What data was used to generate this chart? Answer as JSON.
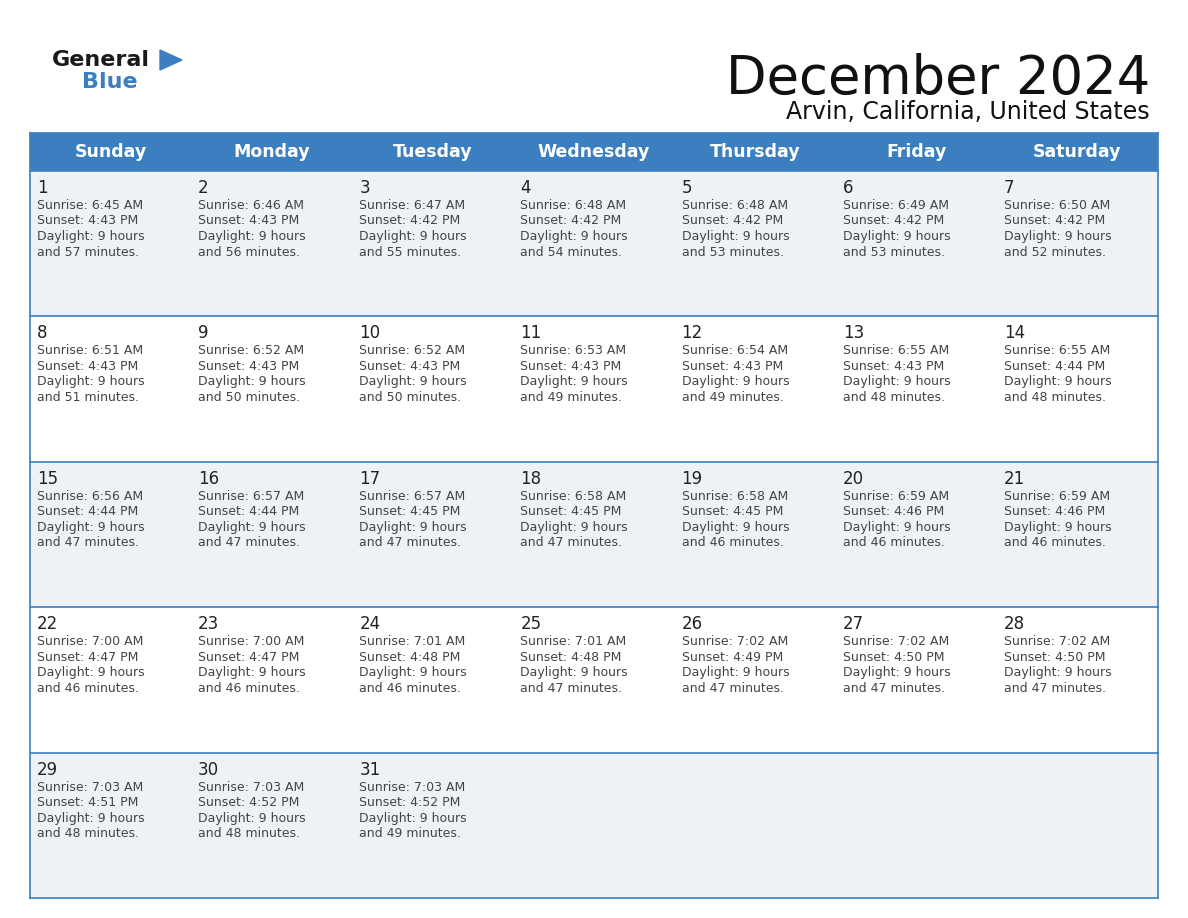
{
  "title": "December 2024",
  "subtitle": "Arvin, California, United States",
  "header_bg_color": "#3c7fc0",
  "header_text_color": "#ffffff",
  "cell_bg_color_odd": "#eef2f7",
  "cell_bg_color_even": "#ffffff",
  "day_number_color": "#222222",
  "cell_text_color": "#444444",
  "grid_line_color": "#3c7fc0",
  "days_of_week": [
    "Sunday",
    "Monday",
    "Tuesday",
    "Wednesday",
    "Thursday",
    "Friday",
    "Saturday"
  ],
  "weeks": [
    [
      {
        "day": "1",
        "sunrise": "6:45 AM",
        "sunset": "4:43 PM",
        "daylight_l1": "9 hours",
        "daylight_l2": "and 57 minutes."
      },
      {
        "day": "2",
        "sunrise": "6:46 AM",
        "sunset": "4:43 PM",
        "daylight_l1": "9 hours",
        "daylight_l2": "and 56 minutes."
      },
      {
        "day": "3",
        "sunrise": "6:47 AM",
        "sunset": "4:42 PM",
        "daylight_l1": "9 hours",
        "daylight_l2": "and 55 minutes."
      },
      {
        "day": "4",
        "sunrise": "6:48 AM",
        "sunset": "4:42 PM",
        "daylight_l1": "9 hours",
        "daylight_l2": "and 54 minutes."
      },
      {
        "day": "5",
        "sunrise": "6:48 AM",
        "sunset": "4:42 PM",
        "daylight_l1": "9 hours",
        "daylight_l2": "and 53 minutes."
      },
      {
        "day": "6",
        "sunrise": "6:49 AM",
        "sunset": "4:42 PM",
        "daylight_l1": "9 hours",
        "daylight_l2": "and 53 minutes."
      },
      {
        "day": "7",
        "sunrise": "6:50 AM",
        "sunset": "4:42 PM",
        "daylight_l1": "9 hours",
        "daylight_l2": "and 52 minutes."
      }
    ],
    [
      {
        "day": "8",
        "sunrise": "6:51 AM",
        "sunset": "4:43 PM",
        "daylight_l1": "9 hours",
        "daylight_l2": "and 51 minutes."
      },
      {
        "day": "9",
        "sunrise": "6:52 AM",
        "sunset": "4:43 PM",
        "daylight_l1": "9 hours",
        "daylight_l2": "and 50 minutes."
      },
      {
        "day": "10",
        "sunrise": "6:52 AM",
        "sunset": "4:43 PM",
        "daylight_l1": "9 hours",
        "daylight_l2": "and 50 minutes."
      },
      {
        "day": "11",
        "sunrise": "6:53 AM",
        "sunset": "4:43 PM",
        "daylight_l1": "9 hours",
        "daylight_l2": "and 49 minutes."
      },
      {
        "day": "12",
        "sunrise": "6:54 AM",
        "sunset": "4:43 PM",
        "daylight_l1": "9 hours",
        "daylight_l2": "and 49 minutes."
      },
      {
        "day": "13",
        "sunrise": "6:55 AM",
        "sunset": "4:43 PM",
        "daylight_l1": "9 hours",
        "daylight_l2": "and 48 minutes."
      },
      {
        "day": "14",
        "sunrise": "6:55 AM",
        "sunset": "4:44 PM",
        "daylight_l1": "9 hours",
        "daylight_l2": "and 48 minutes."
      }
    ],
    [
      {
        "day": "15",
        "sunrise": "6:56 AM",
        "sunset": "4:44 PM",
        "daylight_l1": "9 hours",
        "daylight_l2": "and 47 minutes."
      },
      {
        "day": "16",
        "sunrise": "6:57 AM",
        "sunset": "4:44 PM",
        "daylight_l1": "9 hours",
        "daylight_l2": "and 47 minutes."
      },
      {
        "day": "17",
        "sunrise": "6:57 AM",
        "sunset": "4:45 PM",
        "daylight_l1": "9 hours",
        "daylight_l2": "and 47 minutes."
      },
      {
        "day": "18",
        "sunrise": "6:58 AM",
        "sunset": "4:45 PM",
        "daylight_l1": "9 hours",
        "daylight_l2": "and 47 minutes."
      },
      {
        "day": "19",
        "sunrise": "6:58 AM",
        "sunset": "4:45 PM",
        "daylight_l1": "9 hours",
        "daylight_l2": "and 46 minutes."
      },
      {
        "day": "20",
        "sunrise": "6:59 AM",
        "sunset": "4:46 PM",
        "daylight_l1": "9 hours",
        "daylight_l2": "and 46 minutes."
      },
      {
        "day": "21",
        "sunrise": "6:59 AM",
        "sunset": "4:46 PM",
        "daylight_l1": "9 hours",
        "daylight_l2": "and 46 minutes."
      }
    ],
    [
      {
        "day": "22",
        "sunrise": "7:00 AM",
        "sunset": "4:47 PM",
        "daylight_l1": "9 hours",
        "daylight_l2": "and 46 minutes."
      },
      {
        "day": "23",
        "sunrise": "7:00 AM",
        "sunset": "4:47 PM",
        "daylight_l1": "9 hours",
        "daylight_l2": "and 46 minutes."
      },
      {
        "day": "24",
        "sunrise": "7:01 AM",
        "sunset": "4:48 PM",
        "daylight_l1": "9 hours",
        "daylight_l2": "and 46 minutes."
      },
      {
        "day": "25",
        "sunrise": "7:01 AM",
        "sunset": "4:48 PM",
        "daylight_l1": "9 hours",
        "daylight_l2": "and 47 minutes."
      },
      {
        "day": "26",
        "sunrise": "7:02 AM",
        "sunset": "4:49 PM",
        "daylight_l1": "9 hours",
        "daylight_l2": "and 47 minutes."
      },
      {
        "day": "27",
        "sunrise": "7:02 AM",
        "sunset": "4:50 PM",
        "daylight_l1": "9 hours",
        "daylight_l2": "and 47 minutes."
      },
      {
        "day": "28",
        "sunrise": "7:02 AM",
        "sunset": "4:50 PM",
        "daylight_l1": "9 hours",
        "daylight_l2": "and 47 minutes."
      }
    ],
    [
      {
        "day": "29",
        "sunrise": "7:03 AM",
        "sunset": "4:51 PM",
        "daylight_l1": "9 hours",
        "daylight_l2": "and 48 minutes."
      },
      {
        "day": "30",
        "sunrise": "7:03 AM",
        "sunset": "4:52 PM",
        "daylight_l1": "9 hours",
        "daylight_l2": "and 48 minutes."
      },
      {
        "day": "31",
        "sunrise": "7:03 AM",
        "sunset": "4:52 PM",
        "daylight_l1": "9 hours",
        "daylight_l2": "and 49 minutes."
      },
      null,
      null,
      null,
      null
    ]
  ]
}
